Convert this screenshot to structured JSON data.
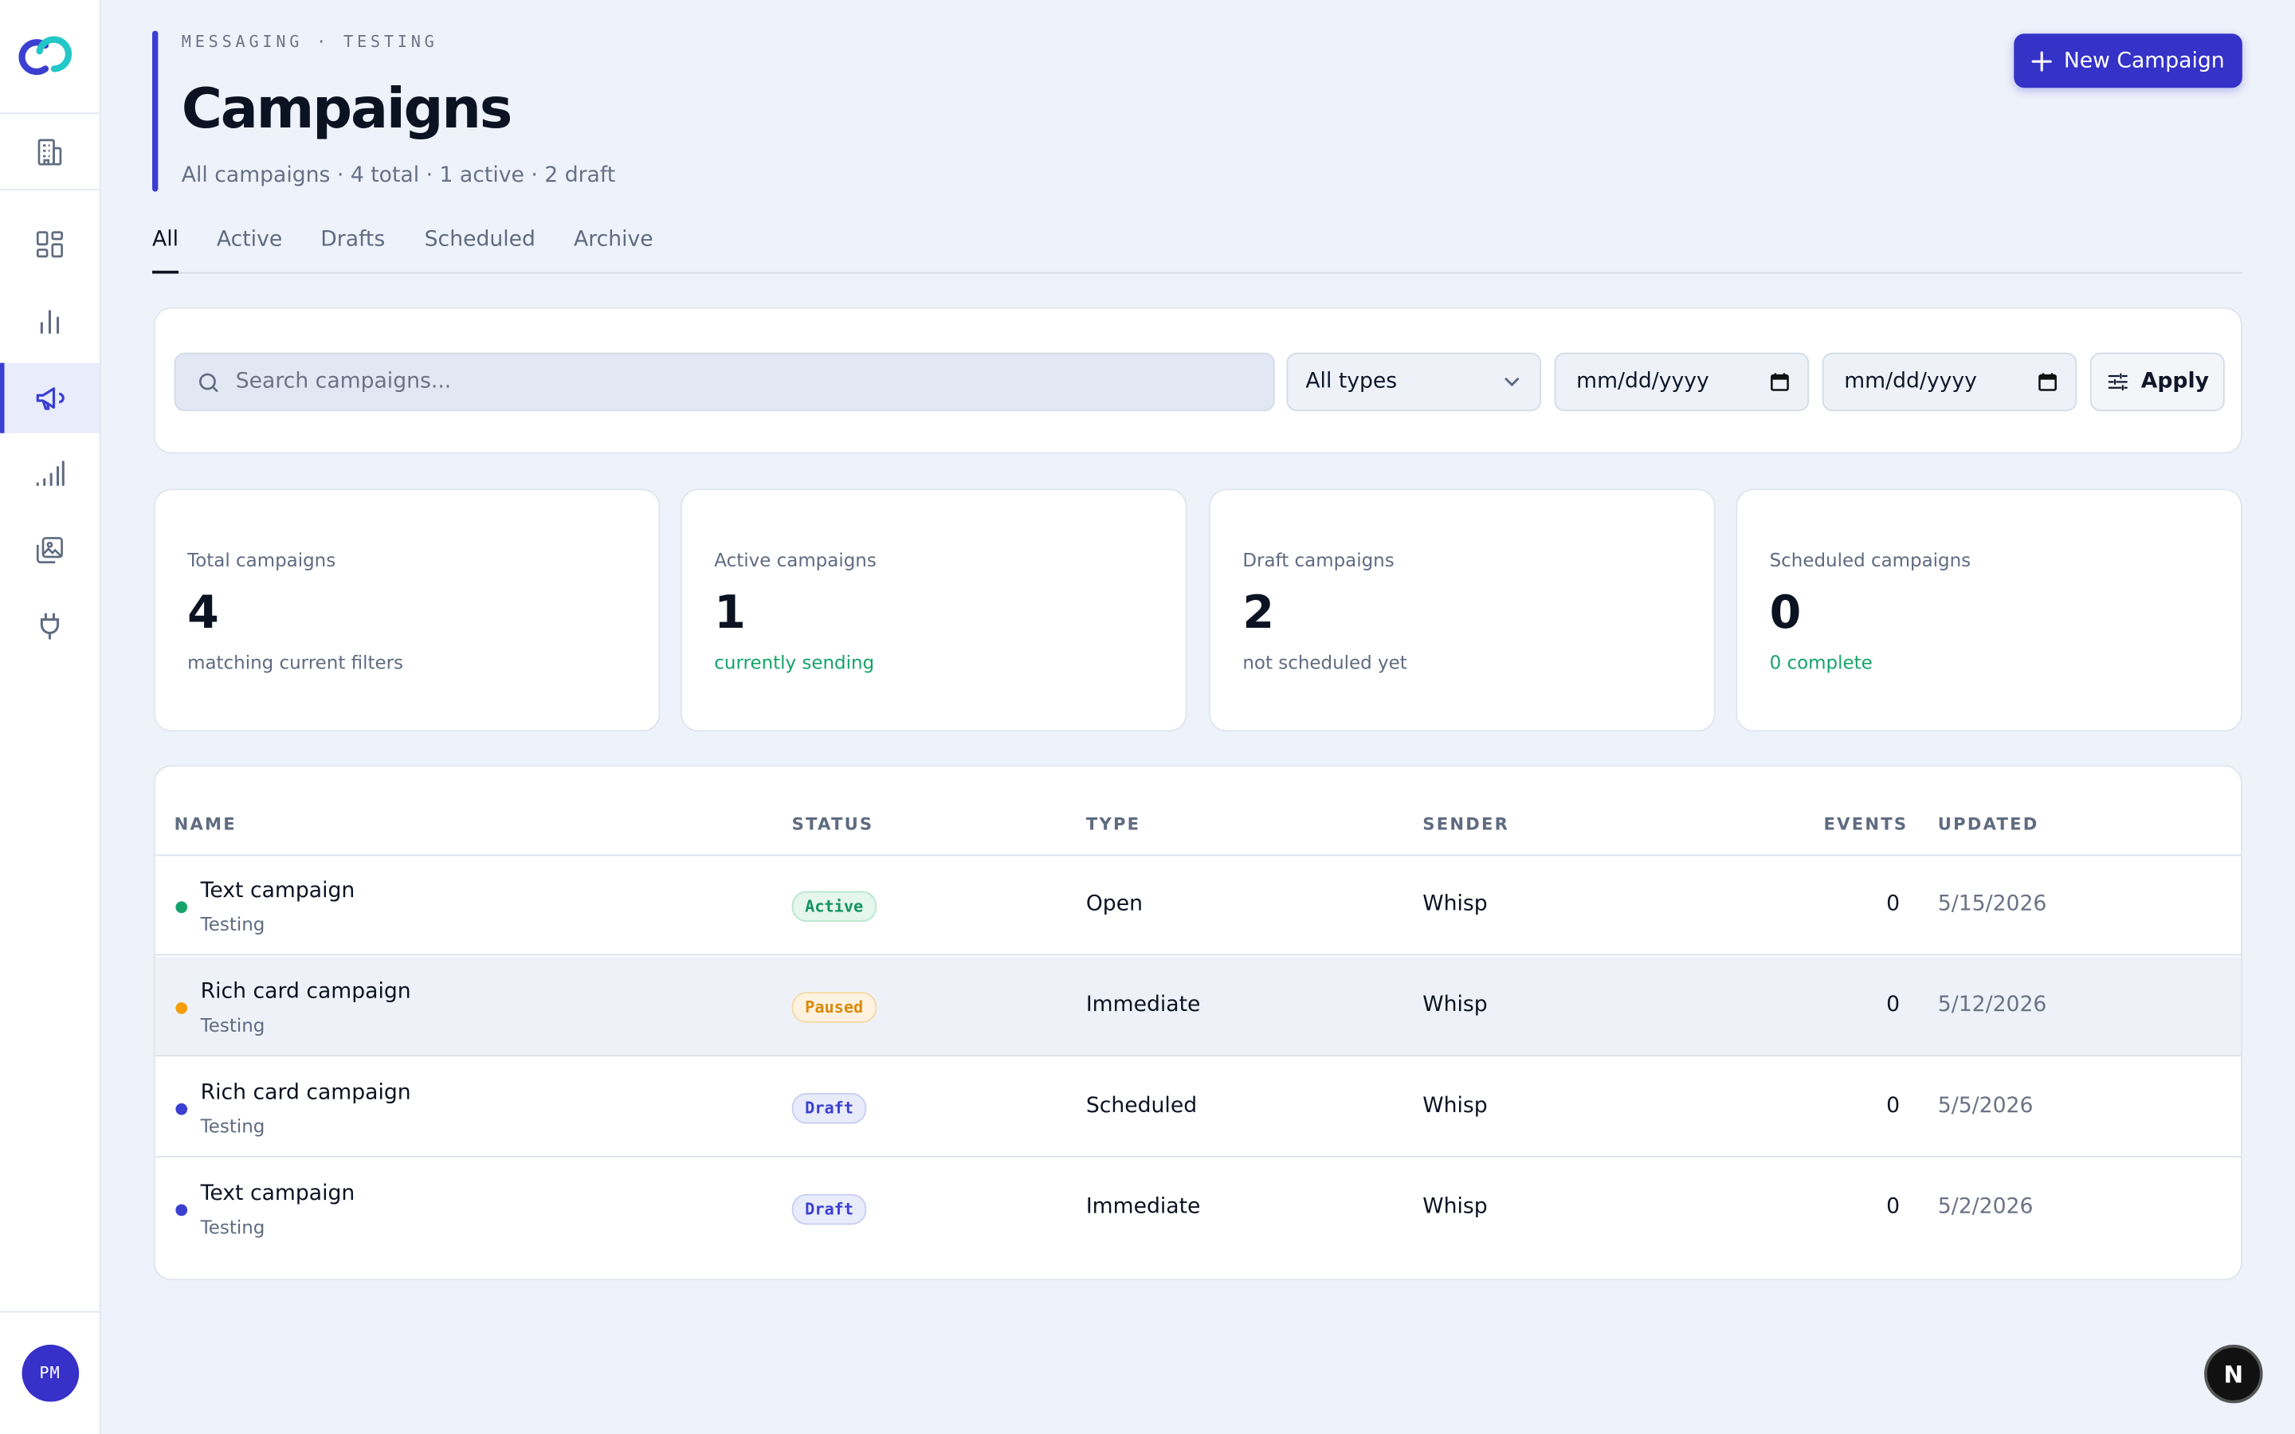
{
  "sidebar": {
    "items": [
      {
        "name": "organization",
        "icon": "building-icon"
      },
      {
        "name": "dashboard",
        "icon": "grid-icon"
      },
      {
        "name": "analytics",
        "icon": "bar-chart-icon"
      },
      {
        "name": "campaigns",
        "icon": "megaphone-icon",
        "active": true
      },
      {
        "name": "signal",
        "icon": "signal-icon"
      },
      {
        "name": "media",
        "icon": "gallery-icon"
      },
      {
        "name": "integrations",
        "icon": "plug-icon"
      }
    ],
    "avatar_initials": "PM"
  },
  "header": {
    "eyebrow": "MESSAGING · TESTING",
    "title": "Campaigns",
    "subtitle": "All campaigns · 4 total · 1 active · 2 draft",
    "new_button": "New Campaign"
  },
  "tabs": [
    {
      "label": "All",
      "active": true
    },
    {
      "label": "Active"
    },
    {
      "label": "Drafts"
    },
    {
      "label": "Scheduled"
    },
    {
      "label": "Archive"
    }
  ],
  "filters": {
    "search_placeholder": "Search campaigns...",
    "type_select": "All types",
    "date_from": "mm/dd/yyyy",
    "date_to": "mm/dd/yyyy",
    "apply_label": "Apply"
  },
  "stats": [
    {
      "label": "Total campaigns",
      "value": "4",
      "note": "matching current filters"
    },
    {
      "label": "Active campaigns",
      "value": "1",
      "note": "currently sending"
    },
    {
      "label": "Draft campaigns",
      "value": "2",
      "note": "not scheduled yet"
    },
    {
      "label": "Scheduled campaigns",
      "value": "0",
      "note": "0 complete"
    }
  ],
  "table": {
    "columns": [
      "NAME",
      "STATUS",
      "TYPE",
      "SENDER",
      "EVENTS",
      "UPDATED"
    ],
    "rows": [
      {
        "name": "Text campaign",
        "sub": "Testing",
        "status": "Active",
        "type": "Open",
        "sender": "Whisp",
        "events": "0",
        "updated": "5/15/2026"
      },
      {
        "name": "Rich card campaign",
        "sub": "Testing",
        "status": "Paused",
        "type": "Immediate",
        "sender": "Whisp",
        "events": "0",
        "updated": "5/12/2026"
      },
      {
        "name": "Rich card campaign",
        "sub": "Testing",
        "status": "Draft",
        "type": "Scheduled",
        "sender": "Whisp",
        "events": "0",
        "updated": "5/5/2026"
      },
      {
        "name": "Text campaign",
        "sub": "Testing",
        "status": "Draft",
        "type": "Immediate",
        "sender": "Whisp",
        "events": "0",
        "updated": "5/2/2026"
      }
    ]
  },
  "colors": {
    "accent": "#3532c8",
    "active": "#16a36b",
    "paused": "#f59e0b",
    "draft": "#3b3fd1"
  },
  "dev_badge": "N"
}
